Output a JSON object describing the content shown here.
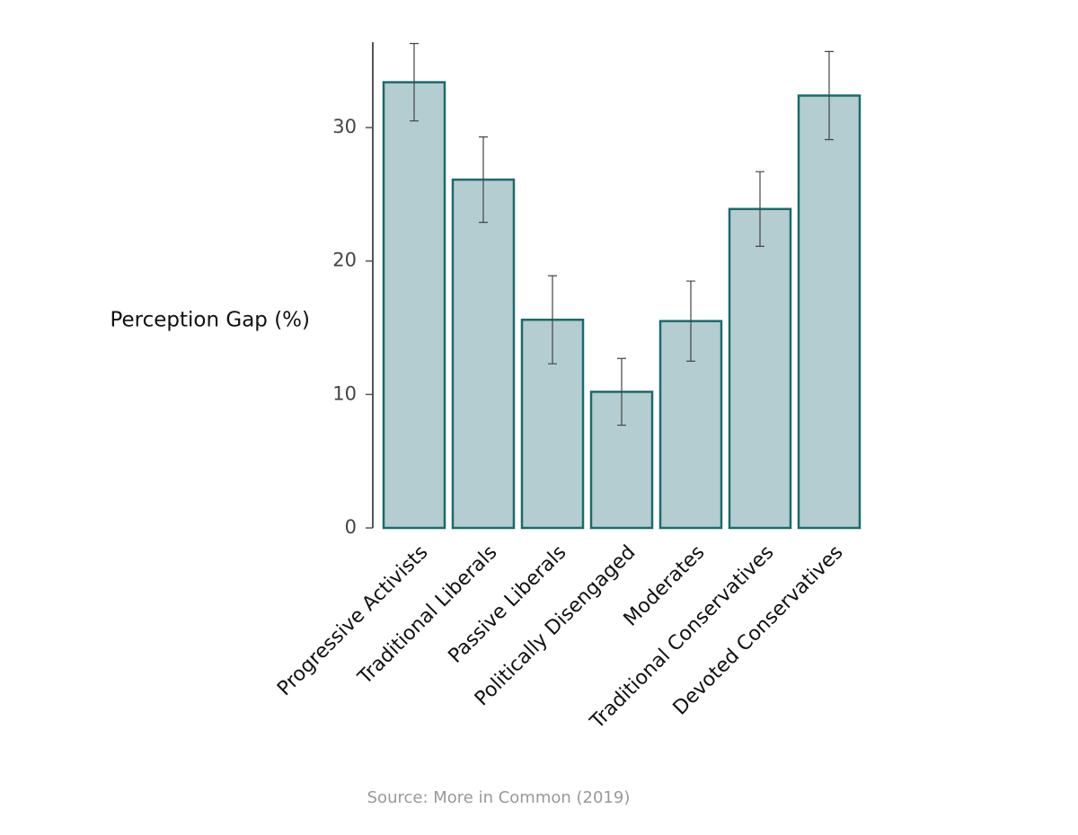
{
  "chart_data": {
    "type": "bar",
    "ylabel": "Perception Gap (%)",
    "source": "Source: More in Common (2019)",
    "categories": [
      "Progressive Activists",
      "Traditional Liberals",
      "Passive Liberals",
      "Politically Disengaged",
      "Moderates",
      "Traditional Conservatives",
      "Devoted Conservatives"
    ],
    "values": [
      33.4,
      26.1,
      15.6,
      10.2,
      15.5,
      23.9,
      32.4
    ],
    "errors": [
      2.9,
      3.2,
      3.3,
      2.5,
      3.0,
      2.8,
      3.3
    ],
    "color": "#b4cdd1",
    "edgecolor": "#1a6b6b",
    "ylim": [
      0,
      36.4
    ],
    "yticks": [
      0,
      10,
      20,
      30
    ],
    "grid": false
  }
}
